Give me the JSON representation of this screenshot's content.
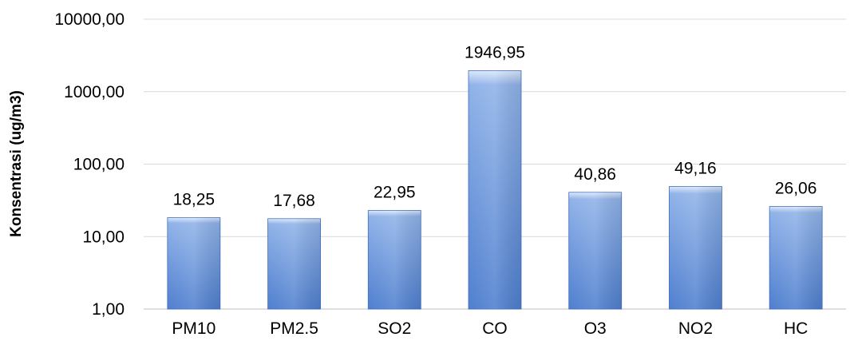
{
  "chart_data": {
    "type": "bar",
    "title": "",
    "xlabel": "",
    "ylabel": "Konsentrasi (ug/m3)",
    "y_scale": "log",
    "ylim": [
      1,
      10000
    ],
    "yticks": [
      1,
      10,
      100,
      1000,
      10000
    ],
    "ytick_labels": [
      "1,00",
      "10,00",
      "100,00",
      "1000,00",
      "10000,00"
    ],
    "grid": true,
    "legend": "none",
    "categories": [
      "PM10",
      "PM2.5",
      "SO2",
      "CO",
      "O3",
      "NO2",
      "HC"
    ],
    "values": [
      18.25,
      17.68,
      22.95,
      1946.95,
      40.86,
      49.16,
      26.06
    ],
    "data_labels": [
      "18,25",
      "17,68",
      "22,95",
      "1946,95",
      "40,86",
      "49,16",
      "26,06"
    ],
    "colors": {
      "bar_light": "#dce8fa",
      "bar_mid": "#8fb2e8",
      "bar_dark": "#4f7fcf",
      "bar_edge": "#3f6fbf",
      "grid": "#d9d9d9",
      "text": "#000000"
    }
  }
}
